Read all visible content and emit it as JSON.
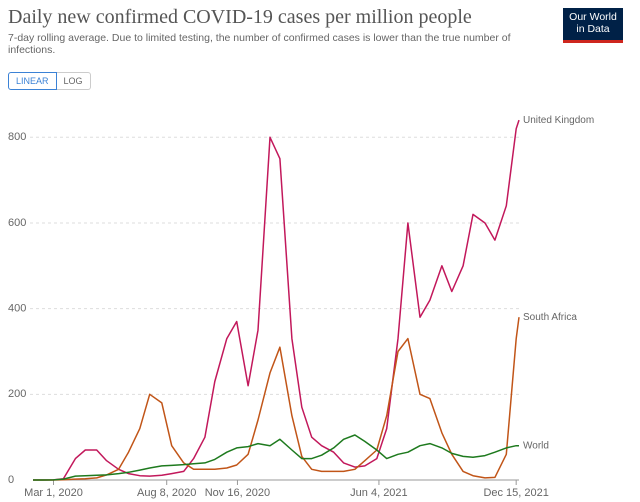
{
  "chart_data": {
    "type": "line",
    "title": "Daily new confirmed COVID-19 cases per million people",
    "subtitle": "7-day rolling average. Due to limited testing, the number of confirmed cases is lower than the true number of infections.",
    "controls": [
      "LINEAR",
      "LOG"
    ],
    "logo": [
      "Our World",
      "in Data"
    ],
    "x": [
      "2020-02-01",
      "2020-02-15",
      "2020-03-01",
      "2020-03-15",
      "2020-04-01",
      "2020-04-15",
      "2020-05-01",
      "2020-05-15",
      "2020-06-01",
      "2020-06-15",
      "2020-07-01",
      "2020-07-15",
      "2020-08-01",
      "2020-08-15",
      "2020-09-01",
      "2020-09-15",
      "2020-10-01",
      "2020-10-15",
      "2020-11-01",
      "2020-11-15",
      "2020-12-01",
      "2020-12-15",
      "2021-01-01",
      "2021-01-15",
      "2021-02-01",
      "2021-02-15",
      "2021-03-01",
      "2021-03-15",
      "2021-04-01",
      "2021-04-15",
      "2021-05-01",
      "2021-05-15",
      "2021-06-01",
      "2021-06-15",
      "2021-07-01",
      "2021-07-15",
      "2021-08-01",
      "2021-08-15",
      "2021-09-01",
      "2021-09-15",
      "2021-10-01",
      "2021-10-15",
      "2021-11-01",
      "2021-11-15",
      "2021-12-01",
      "2021-12-15",
      "2021-12-19"
    ],
    "xlim": [
      "2020-02-01",
      "2021-12-19"
    ],
    "xticks": [
      {
        "value": "2020-03-01",
        "label": "Mar 1, 2020"
      },
      {
        "value": "2020-08-08",
        "label": "Aug 8, 2020"
      },
      {
        "value": "2020-11-16",
        "label": "Nov 16, 2020"
      },
      {
        "value": "2021-06-04",
        "label": "Jun 4, 2021"
      },
      {
        "value": "2021-12-15",
        "label": "Dec 15, 2021"
      }
    ],
    "ylim": [
      0,
      880
    ],
    "yticks": [
      0,
      200,
      400,
      600,
      800
    ],
    "grid": true,
    "series": [
      {
        "name": "United Kingdom",
        "color": "#c2185b",
        "values": [
          0,
          0,
          0.3,
          3,
          50,
          70,
          70,
          45,
          25,
          15,
          10,
          9,
          11,
          15,
          20,
          50,
          100,
          230,
          330,
          370,
          220,
          350,
          800,
          750,
          330,
          170,
          100,
          80,
          65,
          40,
          30,
          33,
          50,
          120,
          330,
          600,
          380,
          420,
          500,
          440,
          500,
          620,
          600,
          560,
          640,
          820,
          840
        ]
      },
      {
        "name": "South Africa",
        "color": "#c15518",
        "values": [
          0,
          0,
          0,
          0.5,
          2,
          3,
          5,
          12,
          25,
          65,
          120,
          200,
          180,
          80,
          40,
          25,
          25,
          25,
          28,
          35,
          60,
          140,
          250,
          310,
          150,
          55,
          25,
          20,
          20,
          20,
          25,
          45,
          70,
          150,
          300,
          330,
          200,
          190,
          110,
          60,
          20,
          10,
          5,
          6,
          60,
          330,
          380
        ]
      },
      {
        "name": "World",
        "color": "#1e7a1e",
        "values": [
          0,
          0,
          0.3,
          2,
          9,
          10,
          11,
          12,
          15,
          18,
          23,
          28,
          33,
          34,
          36,
          38,
          40,
          48,
          65,
          75,
          78,
          85,
          80,
          95,
          70,
          50,
          50,
          58,
          75,
          95,
          105,
          90,
          70,
          50,
          60,
          65,
          80,
          85,
          75,
          62,
          55,
          53,
          57,
          65,
          75,
          80,
          80
        ]
      }
    ]
  }
}
